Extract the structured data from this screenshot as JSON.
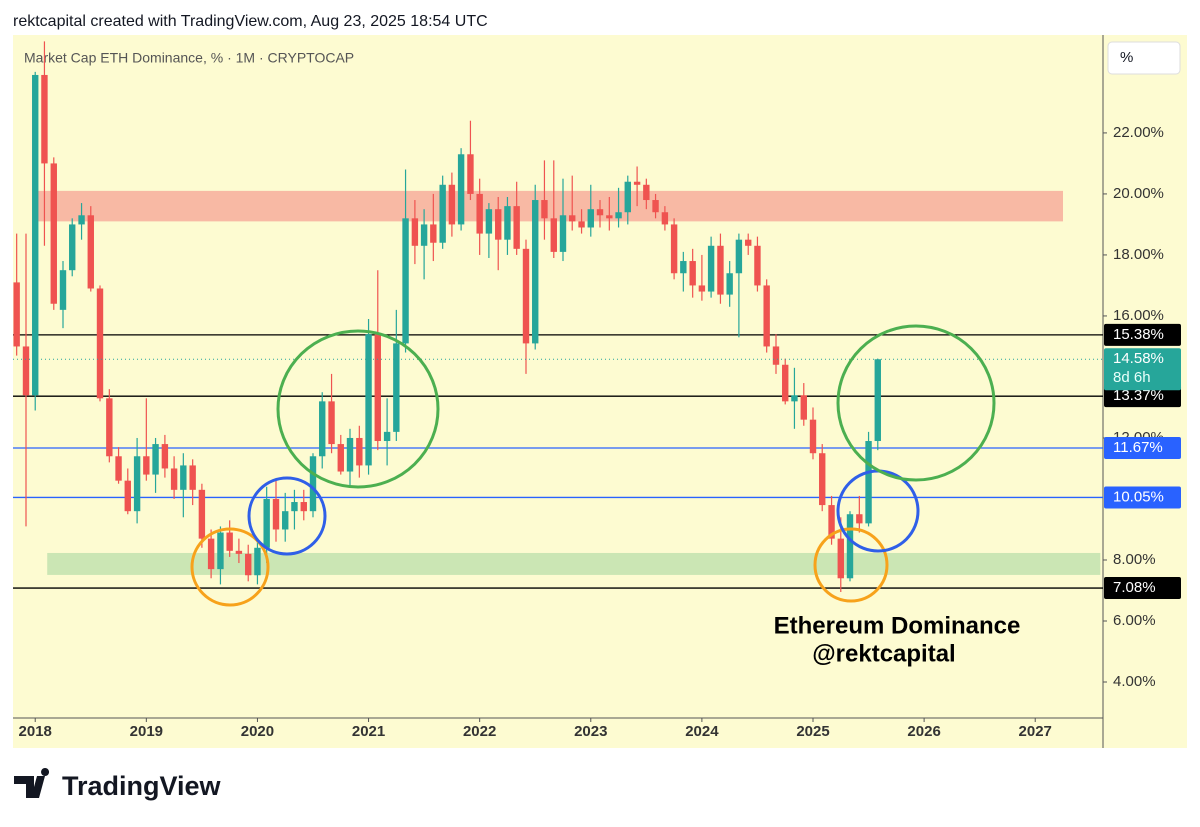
{
  "header": "rektcapital created with TradingView.com, Aug 23, 2025 18:54 UTC",
  "footer_brand": "TradingView",
  "chart_data": {
    "type": "candlestick",
    "title": "Market Cap ETH Dominance, % · 1M · CRYPTOCAP",
    "unit_button": "%",
    "annotations": [
      "Ethereum Dominance",
      "@rektcapital"
    ],
    "up_color": "#26a69a",
    "down_color": "#ef5350",
    "x": [
      2017.833,
      2017.917,
      2018.0,
      2018.083,
      2018.167,
      2018.25,
      2018.333,
      2018.417,
      2018.5,
      2018.583,
      2018.667,
      2018.75,
      2018.833,
      2018.917,
      2019.0,
      2019.083,
      2019.167,
      2019.25,
      2019.333,
      2019.417,
      2019.5,
      2019.583,
      2019.667,
      2019.75,
      2019.833,
      2019.917,
      2020.0,
      2020.083,
      2020.167,
      2020.25,
      2020.333,
      2020.417,
      2020.5,
      2020.583,
      2020.667,
      2020.75,
      2020.833,
      2020.917,
      2021.0,
      2021.083,
      2021.167,
      2021.25,
      2021.333,
      2021.417,
      2021.5,
      2021.583,
      2021.667,
      2021.75,
      2021.833,
      2021.917,
      2022.0,
      2022.083,
      2022.167,
      2022.25,
      2022.333,
      2022.417,
      2022.5,
      2022.583,
      2022.667,
      2022.75,
      2022.833,
      2022.917,
      2023.0,
      2023.083,
      2023.167,
      2023.25,
      2023.333,
      2023.417,
      2023.5,
      2023.583,
      2023.667,
      2023.75,
      2023.833,
      2023.917,
      2024.0,
      2024.083,
      2024.167,
      2024.25,
      2024.333,
      2024.417,
      2024.5,
      2024.583,
      2024.667,
      2024.75,
      2024.833,
      2024.917,
      2025.0,
      2025.083,
      2025.167,
      2025.25,
      2025.333,
      2025.417,
      2025.5,
      2025.583
    ],
    "open": [
      17.1,
      15.0,
      13.4,
      23.9,
      21.0,
      16.2,
      17.5,
      19.0,
      19.3,
      16.9,
      13.3,
      11.4,
      10.6,
      9.6,
      11.4,
      10.8,
      11.8,
      11.0,
      10.3,
      11.1,
      10.3,
      8.7,
      7.7,
      8.9,
      8.3,
      8.2,
      7.5,
      8.4,
      10.0,
      9.0,
      9.6,
      9.9,
      9.6,
      11.4,
      13.2,
      11.8,
      10.9,
      12.0,
      11.1,
      15.4,
      11.9,
      12.2,
      15.1,
      19.2,
      18.3,
      19.0,
      18.4,
      20.3,
      19.0,
      21.3,
      20.0,
      18.7,
      19.5,
      18.5,
      19.6,
      18.2,
      15.1,
      19.8,
      19.2,
      18.1,
      19.3,
      19.1,
      18.9,
      19.5,
      19.3,
      19.2,
      19.4,
      20.4,
      20.3,
      19.8,
      19.4,
      19.0,
      17.4,
      17.8,
      17.0,
      16.8,
      18.3,
      16.7,
      17.4,
      18.5,
      18.3,
      17.0,
      15.0,
      14.4,
      13.2,
      13.4,
      12.6,
      11.5,
      9.8,
      8.7,
      7.4,
      9.5,
      9.2,
      11.9
    ],
    "high": [
      18.7,
      18.7,
      24.0,
      25.0,
      21.2,
      17.8,
      19.2,
      19.7,
      19.6,
      17.0,
      13.6,
      11.7,
      11.0,
      12.0,
      13.3,
      12.0,
      12.1,
      11.4,
      11.5,
      11.3,
      10.5,
      9.0,
      9.1,
      9.3,
      8.7,
      8.5,
      8.6,
      10.4,
      10.6,
      10.2,
      10.3,
      10.3,
      11.5,
      13.5,
      14.1,
      12.1,
      12.3,
      12.4,
      15.9,
      17.5,
      13.3,
      16.2,
      20.8,
      19.8,
      19.5,
      20.0,
      20.6,
      20.7,
      21.5,
      22.4,
      20.5,
      19.7,
      19.9,
      19.9,
      20.4,
      18.5,
      20.3,
      21.1,
      21.1,
      20.5,
      20.6,
      19.5,
      20.3,
      19.8,
      19.9,
      20.2,
      20.6,
      20.9,
      20.5,
      20.0,
      19.6,
      19.2,
      18.1,
      18.2,
      18.0,
      18.6,
      18.7,
      17.8,
      18.7,
      18.7,
      18.6,
      17.2,
      15.4,
      14.6,
      14.3,
      13.8,
      13.0,
      11.8,
      10.1,
      9.4,
      9.6,
      10.1,
      12.2,
      14.6
    ],
    "low": [
      14.7,
      9.1,
      12.9,
      18.3,
      16.2,
      15.6,
      17.3,
      18.5,
      16.8,
      13.2,
      11.2,
      10.5,
      9.5,
      9.2,
      10.6,
      10.2,
      10.7,
      10.0,
      9.4,
      9.8,
      8.4,
      7.4,
      7.2,
      8.1,
      7.9,
      7.3,
      7.2,
      7.9,
      8.6,
      8.6,
      9.0,
      9.3,
      9.4,
      11.0,
      11.5,
      10.8,
      10.4,
      10.7,
      10.8,
      11.6,
      11.1,
      11.9,
      14.8,
      17.7,
      17.2,
      17.8,
      18.2,
      18.6,
      18.8,
      19.8,
      18.0,
      17.9,
      17.5,
      18.0,
      18.0,
      14.1,
      14.9,
      18.5,
      17.9,
      17.8,
      18.8,
      18.7,
      18.6,
      18.9,
      18.8,
      18.9,
      19.0,
      19.6,
      19.5,
      19.2,
      18.8,
      17.2,
      16.8,
      16.6,
      16.5,
      16.6,
      16.4,
      16.3,
      15.3,
      18.0,
      16.8,
      14.8,
      14.1,
      13.1,
      12.3,
      12.4,
      11.3,
      9.6,
      8.5,
      6.95,
      7.3,
      8.9,
      9.1,
      11.6
    ],
    "close": [
      15.0,
      13.4,
      23.9,
      21.0,
      16.4,
      17.5,
      19.0,
      19.3,
      16.9,
      13.3,
      11.4,
      10.6,
      9.6,
      11.4,
      10.8,
      11.8,
      11.0,
      10.3,
      11.1,
      10.3,
      8.7,
      7.7,
      8.9,
      8.3,
      8.2,
      7.5,
      8.4,
      10.0,
      9.0,
      9.6,
      9.9,
      9.6,
      11.4,
      13.2,
      11.8,
      10.9,
      12.0,
      11.1,
      15.4,
      11.9,
      12.2,
      15.1,
      19.2,
      18.3,
      19.0,
      18.4,
      20.3,
      19.0,
      21.3,
      20.0,
      18.7,
      19.5,
      18.5,
      19.6,
      18.2,
      15.1,
      19.8,
      19.2,
      18.1,
      19.3,
      19.1,
      18.9,
      19.5,
      19.3,
      19.2,
      19.4,
      20.4,
      20.3,
      19.8,
      19.4,
      19.0,
      17.4,
      17.8,
      17.0,
      16.8,
      18.3,
      16.7,
      17.4,
      18.5,
      18.3,
      17.0,
      15.0,
      14.4,
      13.2,
      13.4,
      12.6,
      11.5,
      9.8,
      8.7,
      7.4,
      9.5,
      9.2,
      11.9,
      14.58
    ],
    "xlim": [
      2017.8,
      2027.61
    ],
    "xticks": [
      2018,
      2019,
      2020,
      2021,
      2022,
      2023,
      2024,
      2025,
      2026,
      2027
    ],
    "ylim": [
      2.82,
      25.21
    ],
    "yticks": [
      {
        "value": 4,
        "label": "4.00%"
      },
      {
        "value": 6,
        "label": "6.00%"
      },
      {
        "value": 8,
        "label": "8.00%"
      },
      {
        "value": 12,
        "label": "12.00%"
      },
      {
        "value": 16,
        "label": "16.00%"
      },
      {
        "value": 18,
        "label": "18.00%"
      },
      {
        "value": 20,
        "label": "20.00%"
      },
      {
        "value": 22,
        "label": "22.00%"
      }
    ],
    "zones": [
      {
        "x": [
          2018.0,
          2027.25
        ],
        "y": [
          19.1,
          20.1
        ],
        "color": "#f8b9a4"
      },
      {
        "x": [
          2018.108,
          2027.586
        ],
        "y": [
          7.51,
          8.23
        ],
        "color": "#cbe6b4"
      }
    ],
    "levels": [
      {
        "value": 15.38,
        "label": "15.38%",
        "color": "#000000"
      },
      {
        "value": 13.37,
        "label": "13.37%",
        "color": "#000000"
      },
      {
        "value": 11.67,
        "label": "11.67%",
        "color": "#2962ff"
      },
      {
        "value": 10.05,
        "label": "10.05%",
        "color": "#2962ff"
      },
      {
        "value": 7.08,
        "label": "7.08%",
        "color": "#000000"
      }
    ],
    "last": {
      "value": 14.58,
      "label": "14.58%",
      "countdown": "8d 6h",
      "color": "#26a69a"
    }
  }
}
